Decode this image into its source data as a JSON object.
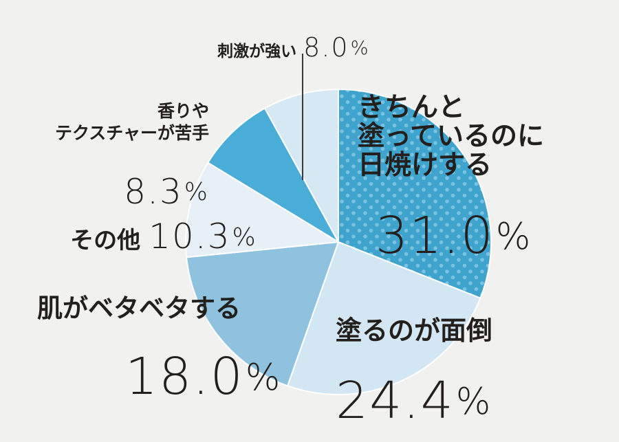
{
  "chart_data": {
    "type": "pie",
    "slices": [
      {
        "label": "きちんと\n塗っているのに\n日焼けする",
        "value": 31.0,
        "display": "31.0",
        "color": "#3ea3cd",
        "pattern": "dots"
      },
      {
        "label": "塗るのが面倒",
        "value": 24.4,
        "display": "24.4",
        "color": "#d3e6f3"
      },
      {
        "label": "肌がベタベタする",
        "value": 18.0,
        "display": "18.0",
        "color": "#8ec2de"
      },
      {
        "label": "その他",
        "value": 10.3,
        "display": "10.3",
        "color": "#e8f0f7"
      },
      {
        "label": "香りや\nテクスチャーが苦手",
        "value": 8.3,
        "display": "8.3",
        "color": "#4aadd7"
      },
      {
        "label": "刺激が強い",
        "value": 8.0,
        "display": "8.0",
        "color": "#d7e8f5"
      }
    ],
    "unit": "%",
    "start_angle": "12 o'clock",
    "direction": "clockwise"
  }
}
